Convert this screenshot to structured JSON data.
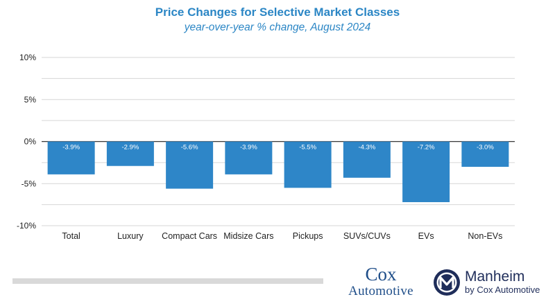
{
  "chart_data": {
    "type": "bar",
    "title": "Price Changes for Selective Market Classes",
    "subtitle": "year-over-year % change, August 2024",
    "categories": [
      "Total",
      "Luxury",
      "Compact Cars",
      "Midsize Cars",
      "Pickups",
      "SUVs/CUVs",
      "EVs",
      "Non-EVs"
    ],
    "values": [
      -3.9,
      -2.9,
      -5.6,
      -3.9,
      -5.5,
      -4.3,
      -7.2,
      -3.0
    ],
    "data_labels": [
      "-3.9%",
      "-2.9%",
      "-5.6%",
      "-3.9%",
      "-5.5%",
      "-4.3%",
      "-7.2%",
      "-3.0%"
    ],
    "yticks": [
      10,
      5,
      0,
      -5,
      -10
    ],
    "ytick_labels": [
      "10%",
      "5%",
      "0%",
      "-5%",
      "-10%"
    ],
    "ylim": [
      -10,
      10
    ],
    "gridlines_at": [
      10,
      7.5,
      5,
      2.5,
      0,
      -2.5,
      -5,
      -7.5,
      -10
    ],
    "xlabel": "",
    "ylabel": "",
    "legend": "none",
    "bar_color": "#2e86c8",
    "title_color": "#2b86c5"
  },
  "logos": {
    "cox_top": "Cox",
    "cox_bottom": "Automotive",
    "manheim_name": "Manheim",
    "manheim_sub": "by Cox Automotive"
  }
}
